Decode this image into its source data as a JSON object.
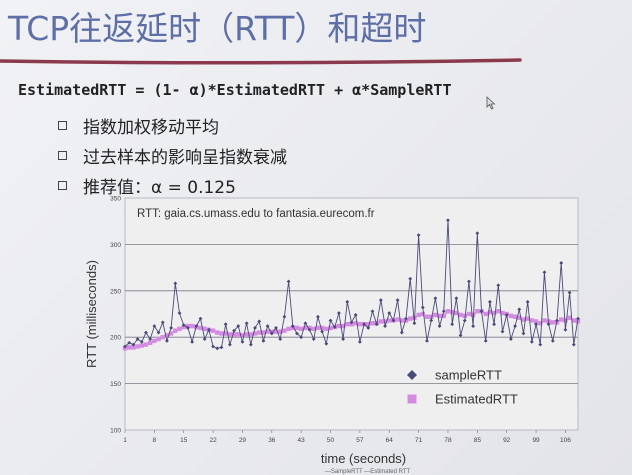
{
  "slide": {
    "title": "TCP往返延时（RTT）和超时",
    "formula": "EstimatedRTT = (1- α)*EstimatedRTT + α*SampleRTT",
    "bullets": [
      "指数加权移动平均",
      "过去样本的影响呈指数衰减",
      "推荐值：α = 0.125"
    ]
  },
  "colors": {
    "title": "#5d6fa6",
    "title_rule": "#8b3a4e",
    "sample": "#4a4a78",
    "estimated": "#d48ce0"
  },
  "icons": {
    "bullet": "square-bullet-icon",
    "cursor": "pointer-cursor-icon"
  },
  "chart_data": {
    "type": "line",
    "title": "RTT: gaia.cs.umass.edu to fantasia.eurecom.fr",
    "xlabel": "time (seconds)",
    "ylabel": "RTT (milliseconds)",
    "xlim": [
      1,
      109
    ],
    "ylim": [
      100,
      350
    ],
    "xticks": [
      1,
      8,
      15,
      22,
      29,
      36,
      43,
      50,
      57,
      64,
      71,
      78,
      85,
      92,
      99,
      106
    ],
    "yticks": [
      100,
      150,
      200,
      250,
      300,
      350
    ],
    "grid": true,
    "legend_position": "bottom-right",
    "below_axis_text": "—SampleRTT —Estimated RTT",
    "series": [
      {
        "name": "sampleRTT",
        "marker": "diamond",
        "x": [
          1,
          2,
          3,
          4,
          5,
          6,
          7,
          8,
          9,
          10,
          11,
          12,
          13,
          14,
          15,
          16,
          17,
          18,
          19,
          20,
          21,
          22,
          23,
          24,
          25,
          26,
          27,
          28,
          29,
          30,
          31,
          32,
          33,
          34,
          35,
          36,
          37,
          38,
          39,
          40,
          41,
          42,
          43,
          44,
          45,
          46,
          47,
          48,
          49,
          50,
          51,
          52,
          53,
          54,
          55,
          56,
          57,
          58,
          59,
          60,
          61,
          62,
          63,
          64,
          65,
          66,
          67,
          68,
          69,
          70,
          71,
          72,
          73,
          74,
          75,
          76,
          77,
          78,
          79,
          80,
          81,
          82,
          83,
          84,
          85,
          86,
          87,
          88,
          89,
          90,
          91,
          92,
          93,
          94,
          95,
          96,
          97,
          98,
          99,
          100,
          101,
          102,
          103,
          104,
          105,
          106,
          107,
          108,
          109
        ],
        "values": [
          190,
          194,
          192,
          198,
          195,
          205,
          198,
          212,
          205,
          216,
          196,
          210,
          258,
          226,
          213,
          210,
          195,
          212,
          220,
          198,
          208,
          190,
          188,
          189,
          214,
          192,
          207,
          212,
          195,
          215,
          192,
          210,
          217,
          196,
          212,
          204,
          210,
          198,
          222,
          260,
          212,
          204,
          200,
          215,
          208,
          198,
          222,
          206,
          193,
          218,
          211,
          226,
          198,
          238,
          216,
          224,
          195,
          214,
          210,
          228,
          214,
          240,
          212,
          226,
          218,
          240,
          205,
          220,
          263,
          215,
          310,
          232,
          196,
          218,
          242,
          212,
          228,
          326,
          214,
          242,
          202,
          218,
          260,
          212,
          312,
          228,
          196,
          238,
          214,
          256,
          206,
          224,
          198,
          212,
          230,
          204,
          238,
          195,
          214,
          192,
          270,
          214,
          196,
          218,
          280,
          208,
          248,
          192,
          220
        ]
      },
      {
        "name": "EstimatedRTT",
        "marker": "square",
        "x": [
          1,
          2,
          3,
          4,
          5,
          6,
          7,
          8,
          9,
          10,
          11,
          12,
          13,
          14,
          15,
          16,
          17,
          18,
          19,
          20,
          21,
          22,
          23,
          24,
          25,
          26,
          27,
          28,
          29,
          30,
          31,
          32,
          33,
          34,
          35,
          36,
          37,
          38,
          39,
          40,
          41,
          42,
          43,
          44,
          45,
          46,
          47,
          48,
          49,
          50,
          51,
          52,
          53,
          54,
          55,
          56,
          57,
          58,
          59,
          60,
          61,
          62,
          63,
          64,
          65,
          66,
          67,
          68,
          69,
          70,
          71,
          72,
          73,
          74,
          75,
          76,
          77,
          78,
          79,
          80,
          81,
          82,
          83,
          84,
          85,
          86,
          87,
          88,
          89,
          90,
          91,
          92,
          93,
          94,
          95,
          96,
          97,
          98,
          99,
          100,
          101,
          102,
          103,
          104,
          105,
          106,
          107,
          108,
          109
        ],
        "values": [
          188,
          189,
          189,
          190,
          191,
          192,
          194,
          196,
          198,
          200,
          202,
          204,
          207,
          209,
          211,
          212,
          212,
          211,
          210,
          209,
          208,
          207,
          205,
          204,
          204,
          203,
          203,
          203,
          202,
          203,
          203,
          204,
          205,
          205,
          206,
          206,
          206,
          206,
          207,
          209,
          210,
          210,
          209,
          210,
          210,
          209,
          210,
          210,
          209,
          210,
          211,
          212,
          212,
          214,
          214,
          215,
          214,
          214,
          214,
          215,
          215,
          217,
          217,
          218,
          218,
          219,
          218,
          218,
          220,
          221,
          224,
          225,
          222,
          222,
          224,
          223,
          223,
          228,
          227,
          226,
          224,
          223,
          225,
          224,
          228,
          228,
          225,
          227,
          226,
          228,
          226,
          225,
          223,
          222,
          221,
          219,
          220,
          218,
          217,
          215,
          218,
          217,
          216,
          216,
          219,
          218,
          221,
          218,
          217
        ]
      }
    ]
  }
}
